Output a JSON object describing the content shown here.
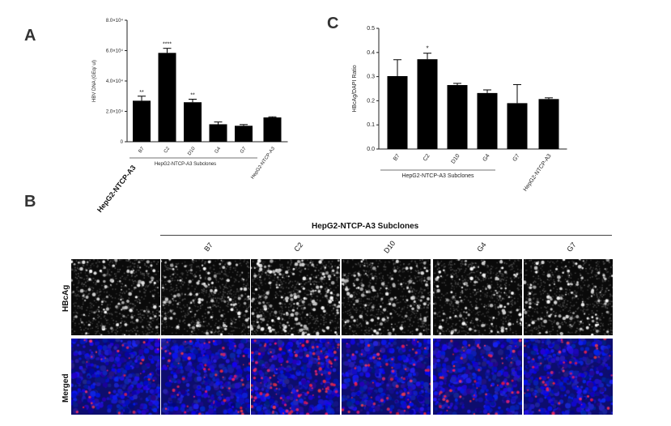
{
  "chart_data": [
    {
      "panel": "A",
      "type": "bar",
      "title": "",
      "ylabel": "HBV DNA (GEq/ ul)",
      "xlabel": "HepG2-NTCP-A3 Subclones",
      "categories": [
        "B7",
        "C2",
        "D10",
        "G4",
        "G7",
        "HepG2-NTCP-A3"
      ],
      "values": [
        27000,
        58500,
        26000,
        11500,
        10500,
        16000
      ],
      "errors": [
        3000,
        3000,
        2000,
        1500,
        800,
        400
      ],
      "significance": [
        "**",
        "****",
        "**",
        "",
        "",
        ""
      ],
      "ylim": [
        0,
        80000
      ],
      "yticks": [
        0,
        20000,
        40000,
        60000,
        80000
      ],
      "ytick_labels": [
        "0",
        "2.0×10⁴",
        "4.0×10⁴",
        "6.0×10⁴",
        "8.0×10⁴"
      ]
    },
    {
      "panel": "C",
      "type": "bar",
      "title": "",
      "ylabel": "HBcAg/DAPI Ratio",
      "xlabel": "HepG2-NTCP-A3 Subclones",
      "categories": [
        "B7",
        "C2",
        "D10",
        "G4",
        "G7",
        "HepG2-NTCP-A3"
      ],
      "values": [
        0.302,
        0.372,
        0.265,
        0.232,
        0.19,
        0.207
      ],
      "errors": [
        0.068,
        0.025,
        0.007,
        0.013,
        0.077,
        0.005
      ],
      "significance": [
        "",
        "*",
        "",
        "",
        "",
        ""
      ],
      "ylim": [
        0,
        0.5
      ],
      "yticks": [
        0,
        0.1,
        0.2,
        0.3,
        0.4,
        0.5
      ],
      "ytick_labels": [
        "0.0",
        "0.1",
        "0.2",
        "0.3",
        "0.4",
        "0.5"
      ]
    }
  ],
  "panels": {
    "a": "A",
    "b": "B",
    "c": "C"
  },
  "panel_b": {
    "group_title": "HepG2-NTCP-A3 Subclones",
    "control_label": "HepG2-NTCP-A3",
    "columns": [
      "B7",
      "C2",
      "D10",
      "G4",
      "G7"
    ],
    "rows": [
      "HBcAg",
      "Merged"
    ],
    "hbcag_intensity": [
      0.45,
      0.5,
      0.95,
      0.55,
      0.5,
      0.5
    ],
    "merged_red_intensity": [
      0.2,
      0.4,
      0.85,
      0.45,
      0.4,
      0.3
    ]
  },
  "colors": {
    "bar": "#000000",
    "axis": "#222222",
    "dapi": "#1a1aa8",
    "hbcag_red": "#e0203a"
  }
}
